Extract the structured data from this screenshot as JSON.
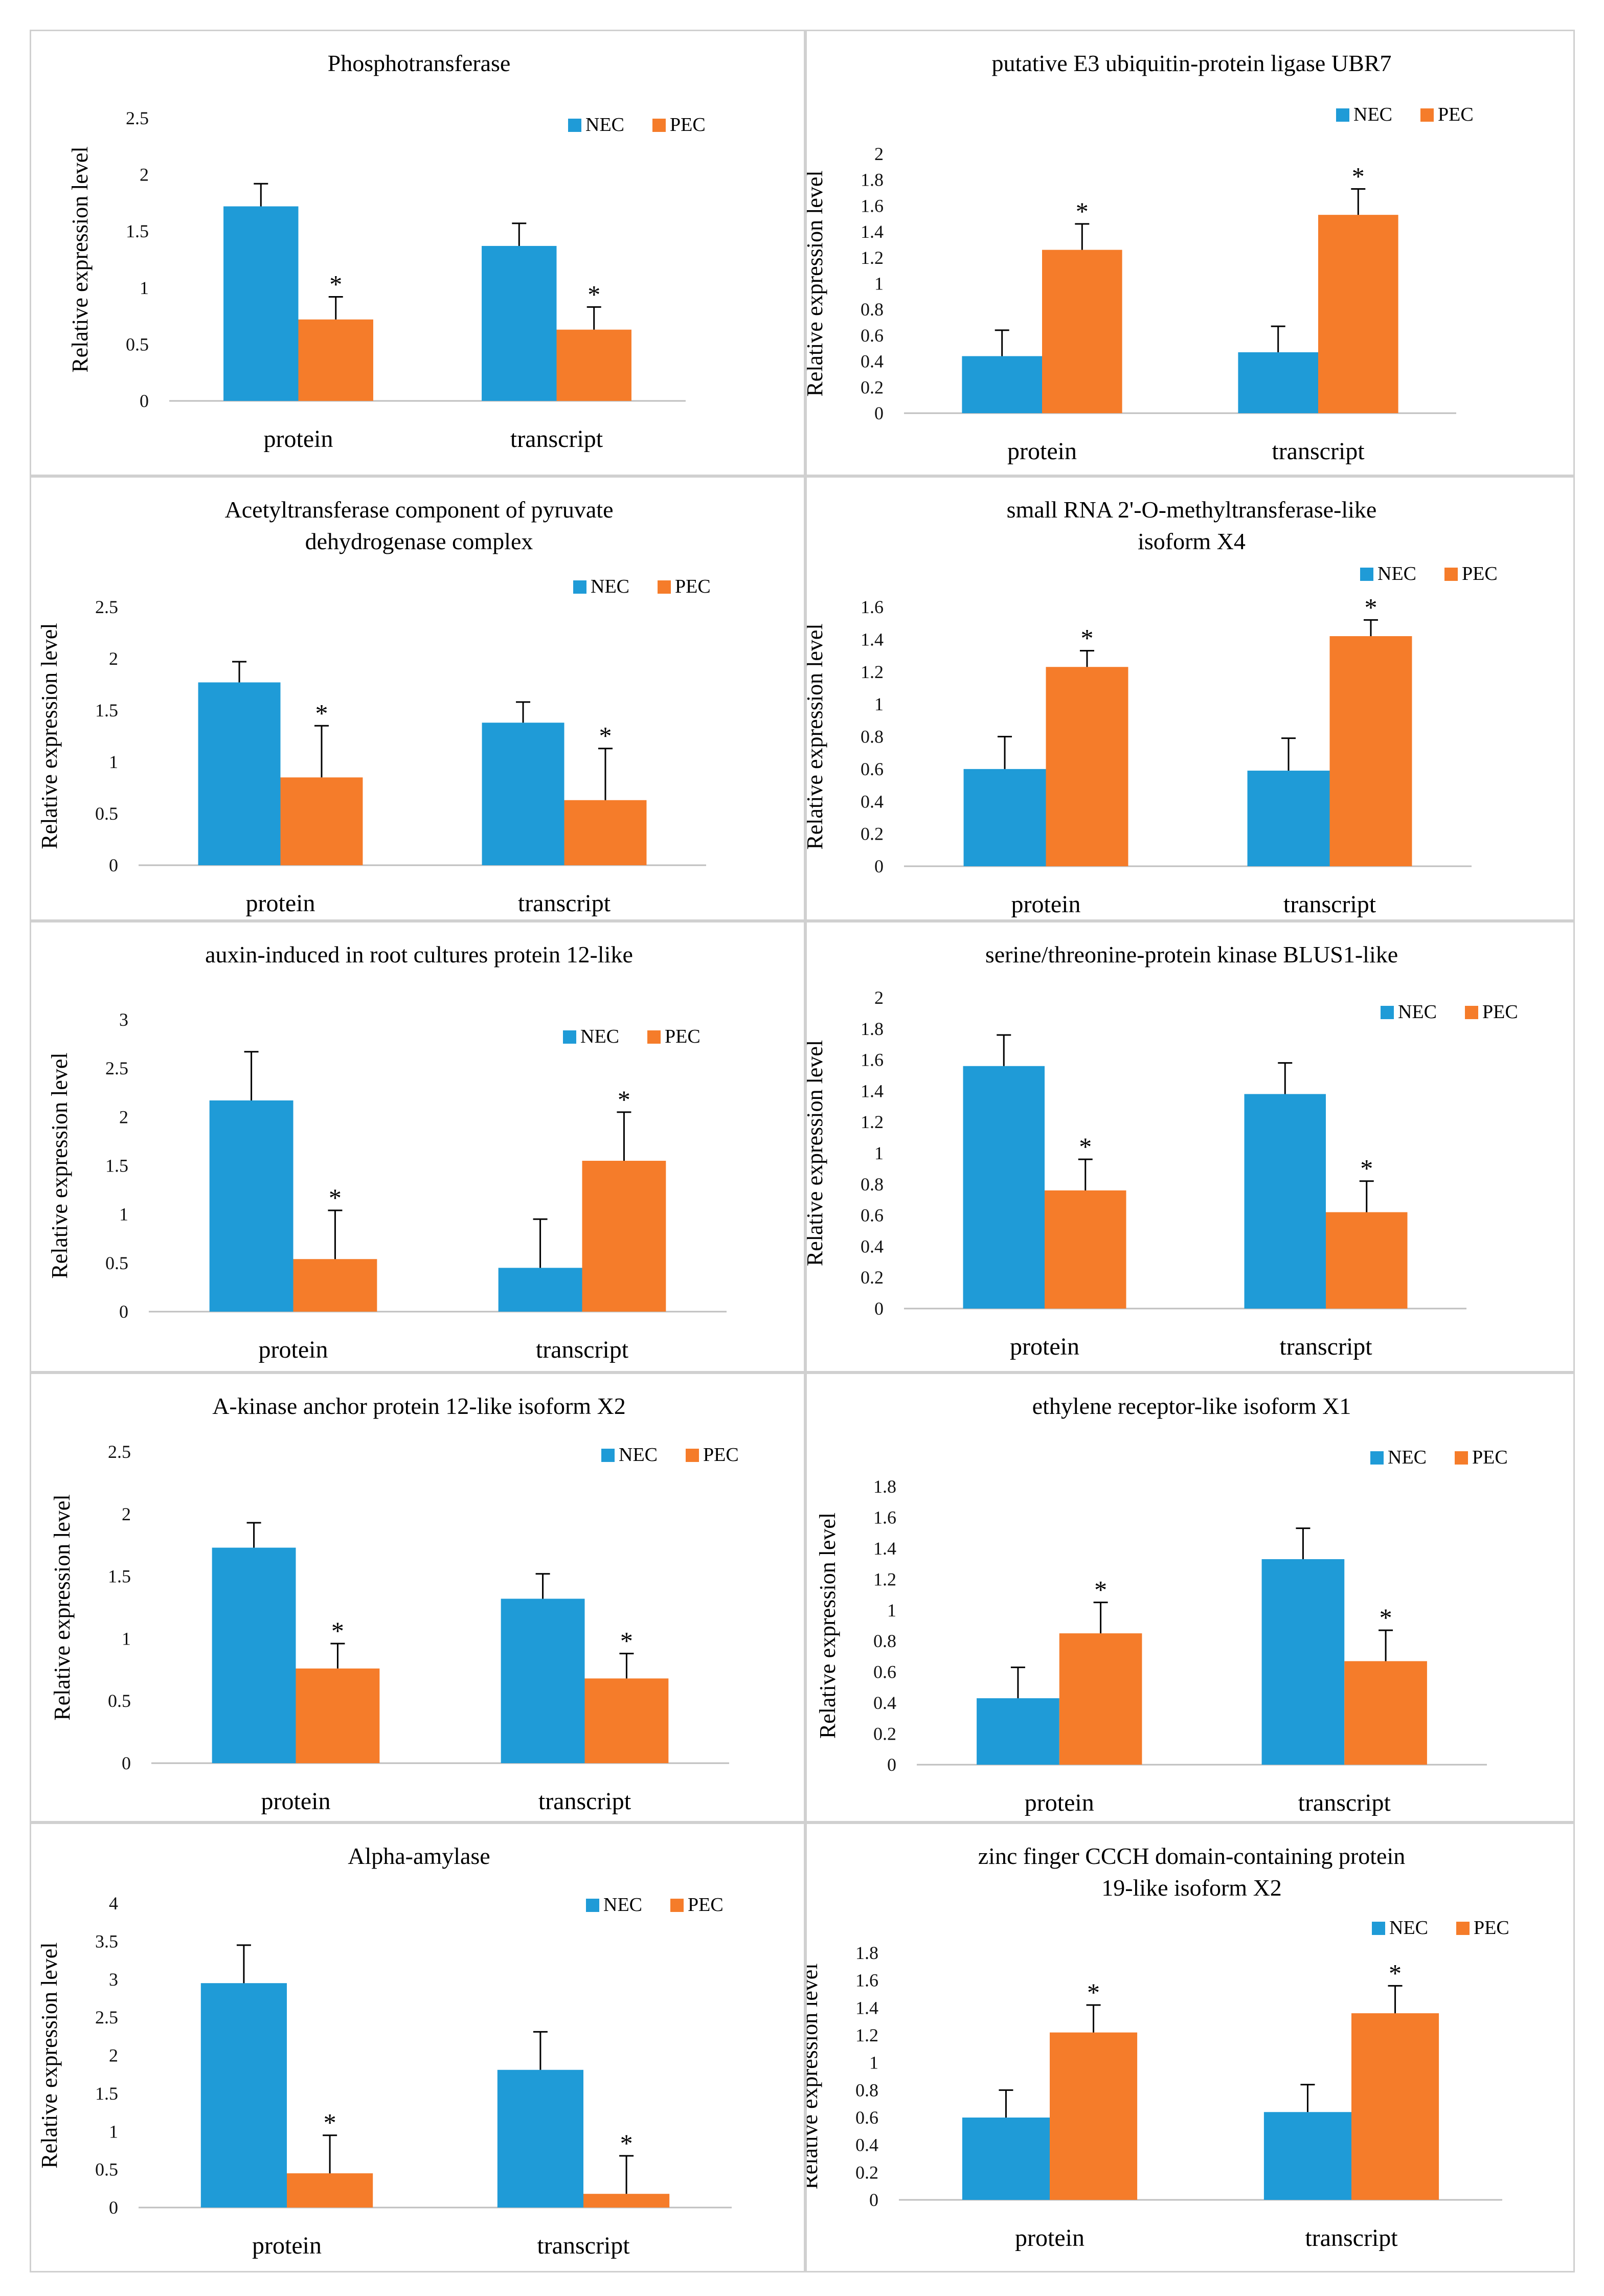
{
  "colors": {
    "NEC": "#1f9bd7",
    "PEC": "#f57c2a",
    "axis": "#bfbfbf",
    "errorbar": "#000000",
    "border": "#d0d0d0"
  },
  "chart_data": [
    {
      "type": "bar",
      "title": [
        "Phosphotransferase"
      ],
      "ylabel": "Relative expression level",
      "categories": [
        "protein",
        "transcript"
      ],
      "yticks": [
        "0",
        "0.5",
        "1",
        "1.5",
        "2",
        "2.5"
      ],
      "ylim": [
        0,
        2.5
      ],
      "legend_position": "top-right",
      "series": [
        {
          "name": "NEC",
          "values": [
            1.72,
            1.37
          ],
          "errors": [
            0.2,
            0.2
          ]
        },
        {
          "name": "PEC",
          "values": [
            0.72,
            0.63
          ],
          "errors": [
            0.2,
            0.2
          ]
        }
      ],
      "significance": [
        "*",
        "*"
      ]
    },
    {
      "type": "bar",
      "title": [
        "putative E3 ubiquitin-protein ligase UBR7"
      ],
      "ylabel": "Relative expression level",
      "categories": [
        "protein",
        "transcript"
      ],
      "yticks": [
        "0",
        "0.2",
        "0.4",
        "0.6",
        "0.8",
        "1",
        "1.2",
        "1.4",
        "1.6",
        "1.8",
        "2"
      ],
      "ylim": [
        0,
        2
      ],
      "legend_position": "top-right",
      "series": [
        {
          "name": "NEC",
          "values": [
            0.44,
            0.47
          ],
          "errors": [
            0.2,
            0.2
          ]
        },
        {
          "name": "PEC",
          "values": [
            1.26,
            1.53
          ],
          "errors": [
            0.2,
            0.2
          ]
        }
      ],
      "significance": [
        "*",
        "*"
      ]
    },
    {
      "type": "bar",
      "title": [
        "Acetyltransferase component of pyruvate",
        "dehydrogenase complex"
      ],
      "ylabel": "Relative expression level",
      "categories": [
        "protein",
        "transcript"
      ],
      "yticks": [
        "0",
        "0.5",
        "1",
        "1.5",
        "2",
        "2.5"
      ],
      "ylim": [
        0,
        2.5
      ],
      "legend_position": "top-right",
      "series": [
        {
          "name": "NEC",
          "values": [
            1.77,
            1.38
          ],
          "errors": [
            0.2,
            0.2
          ]
        },
        {
          "name": "PEC",
          "values": [
            0.85,
            0.63
          ],
          "errors": [
            0.5,
            0.5
          ]
        }
      ],
      "significance": [
        "*",
        "*"
      ]
    },
    {
      "type": "bar",
      "title": [
        "small RNA 2'-O-methyltransferase-like",
        "isoform X4"
      ],
      "ylabel": "Relative expression level",
      "categories": [
        "protein",
        "transcript"
      ],
      "yticks": [
        "0",
        "0.2",
        "0.4",
        "0.6",
        "0.8",
        "1",
        "1.2",
        "1.4",
        "1.6"
      ],
      "ylim": [
        0,
        1.6
      ],
      "legend_position": "top-right",
      "series": [
        {
          "name": "NEC",
          "values": [
            0.6,
            0.59
          ],
          "errors": [
            0.2,
            0.2
          ]
        },
        {
          "name": "PEC",
          "values": [
            1.23,
            1.42
          ],
          "errors": [
            0.1,
            0.1
          ]
        }
      ],
      "significance": [
        "*",
        "*"
      ]
    },
    {
      "type": "bar",
      "title": [
        "auxin-induced in root cultures protein 12-like"
      ],
      "ylabel": "Relative expression level",
      "categories": [
        "protein",
        "transcript"
      ],
      "yticks": [
        "0",
        "0.5",
        "1",
        "1.5",
        "2",
        "2.5",
        "3"
      ],
      "ylim": [
        0,
        3
      ],
      "legend_position": "top-right",
      "series": [
        {
          "name": "NEC",
          "values": [
            2.17,
            0.45
          ],
          "errors": [
            0.5,
            0.5
          ]
        },
        {
          "name": "PEC",
          "values": [
            0.54,
            1.55
          ],
          "errors": [
            0.5,
            0.5
          ]
        }
      ],
      "significance": [
        "*",
        "*"
      ]
    },
    {
      "type": "bar",
      "title": [
        "serine/threonine-protein kinase BLUS1-like"
      ],
      "ylabel": "Relative expression level",
      "categories": [
        "protein",
        "transcript"
      ],
      "yticks": [
        "0",
        "0.2",
        "0.4",
        "0.6",
        "0.8",
        "1",
        "1.2",
        "1.4",
        "1.6",
        "1.8",
        "2"
      ],
      "ylim": [
        0,
        2
      ],
      "legend_position": "top-right",
      "series": [
        {
          "name": "NEC",
          "values": [
            1.56,
            1.38
          ],
          "errors": [
            0.2,
            0.2
          ]
        },
        {
          "name": "PEC",
          "values": [
            0.76,
            0.62
          ],
          "errors": [
            0.2,
            0.2
          ]
        }
      ],
      "significance": [
        "*",
        "*"
      ]
    },
    {
      "type": "bar",
      "title": [
        "A-kinase anchor protein 12-like isoform X2"
      ],
      "ylabel": "Relative expression level",
      "categories": [
        "protein",
        "transcript"
      ],
      "yticks": [
        "0",
        "0.5",
        "1",
        "1.5",
        "2",
        "2.5"
      ],
      "ylim": [
        0,
        2.5
      ],
      "legend_position": "top-right",
      "series": [
        {
          "name": "NEC",
          "values": [
            1.73,
            1.32
          ],
          "errors": [
            0.2,
            0.2
          ]
        },
        {
          "name": "PEC",
          "values": [
            0.76,
            0.68
          ],
          "errors": [
            0.2,
            0.2
          ]
        }
      ],
      "significance": [
        "*",
        "*"
      ]
    },
    {
      "type": "bar",
      "title": [
        "ethylene receptor-like isoform X1"
      ],
      "ylabel": "Relative expression level",
      "categories": [
        "protein",
        "transcript"
      ],
      "yticks": [
        "0",
        "0.2",
        "0.4",
        "0.6",
        "0.8",
        "1",
        "1.2",
        "1.4",
        "1.6",
        "1.8"
      ],
      "ylim": [
        0,
        1.8
      ],
      "legend_position": "top-right",
      "series": [
        {
          "name": "NEC",
          "values": [
            0.43,
            1.33
          ],
          "errors": [
            0.2,
            0.2
          ]
        },
        {
          "name": "PEC",
          "values": [
            0.85,
            0.67
          ],
          "errors": [
            0.2,
            0.2
          ]
        }
      ],
      "significance": [
        "*",
        "*"
      ]
    },
    {
      "type": "bar",
      "title": [
        "Alpha-amylase"
      ],
      "ylabel": "Relative expression level",
      "categories": [
        "protein",
        "transcript"
      ],
      "yticks": [
        "0",
        "0.5",
        "1",
        "1.5",
        "2",
        "2.5",
        "3",
        "3.5",
        "4"
      ],
      "ylim": [
        0,
        4
      ],
      "legend_position": "top-right",
      "series": [
        {
          "name": "NEC",
          "values": [
            2.95,
            1.81
          ],
          "errors": [
            0.5,
            0.5
          ]
        },
        {
          "name": "PEC",
          "values": [
            0.45,
            0.18
          ],
          "errors": [
            0.5,
            0.5
          ]
        }
      ],
      "significance": [
        "*",
        "*"
      ]
    },
    {
      "type": "bar",
      "title": [
        "zinc finger CCCH domain-containing protein",
        "19-like isoform X2"
      ],
      "ylabel": "Relative expression level",
      "categories": [
        "protein",
        "transcript"
      ],
      "yticks": [
        "0",
        "0.2",
        "0.4",
        "0.6",
        "0.8",
        "1",
        "1.2",
        "1.4",
        "1.6",
        "1.8"
      ],
      "ylim": [
        0,
        1.8
      ],
      "legend_position": "top-right",
      "series": [
        {
          "name": "NEC",
          "values": [
            0.6,
            0.64
          ],
          "errors": [
            0.2,
            0.2
          ]
        },
        {
          "name": "PEC",
          "values": [
            1.22,
            1.36
          ],
          "errors": [
            0.2,
            0.2
          ]
        }
      ],
      "significance": [
        "*",
        "*"
      ]
    }
  ]
}
